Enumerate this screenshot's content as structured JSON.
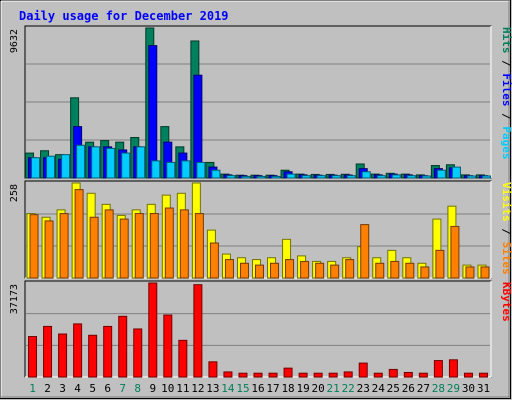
{
  "chart_data": [
    {
      "type": "bar",
      "title": "Daily usage for December 2019",
      "ylabel_parts": [
        {
          "text": "Pages",
          "color": "#00ccff"
        },
        {
          "text": "Files",
          "color": "#0000ff"
        },
        {
          "text": "Hits",
          "color": "#00805c"
        }
      ],
      "ylabel_separator": " / ",
      "max_label": "9632",
      "ylim": [
        0,
        9632
      ],
      "series": [
        {
          "name": "Hits",
          "color": "#00805c",
          "values": [
            1600,
            1750,
            1500,
            5150,
            2300,
            2400,
            2300,
            2600,
            9632,
            3300,
            2000,
            8800,
            1000,
            250,
            180,
            180,
            180,
            500,
            250,
            230,
            230,
            240,
            900,
            250,
            300,
            250,
            200,
            800,
            850,
            200,
            200
          ]
        },
        {
          "name": "Files",
          "color": "#0000ff",
          "values": [
            1300,
            1300,
            1200,
            3300,
            2000,
            2000,
            1800,
            2000,
            8500,
            2300,
            1600,
            6600,
            700,
            200,
            150,
            150,
            150,
            400,
            200,
            180,
            180,
            190,
            600,
            200,
            250,
            200,
            150,
            600,
            650,
            150,
            150
          ]
        },
        {
          "name": "Pages",
          "color": "#00ccff",
          "values": [
            1300,
            1400,
            1500,
            2100,
            2000,
            1900,
            1600,
            2000,
            1100,
            1000,
            1100,
            1000,
            500,
            150,
            100,
            100,
            100,
            250,
            150,
            150,
            150,
            150,
            400,
            150,
            200,
            150,
            130,
            500,
            700,
            130,
            130
          ]
        }
      ]
    },
    {
      "type": "bar",
      "ylabel_parts": [
        {
          "text": "Sites",
          "color": "#ff8000"
        },
        {
          "text": "Visits",
          "color": "#ffff00"
        }
      ],
      "ylabel_separator": " / ",
      "max_label": "258",
      "ylim": [
        0,
        258
      ],
      "series": [
        {
          "name": "Visits",
          "color": "#ffff00",
          "values": [
            175,
            165,
            185,
            258,
            230,
            200,
            170,
            185,
            200,
            225,
            230,
            258,
            130,
            65,
            55,
            50,
            55,
            105,
            60,
            45,
            45,
            55,
            85,
            55,
            75,
            55,
            40,
            160,
            195,
            35,
            35
          ]
        },
        {
          "name": "Sites",
          "color": "#ff8000",
          "values": [
            172,
            155,
            175,
            240,
            165,
            185,
            160,
            175,
            175,
            190,
            185,
            175,
            95,
            50,
            40,
            35,
            40,
            50,
            45,
            40,
            35,
            50,
            145,
            40,
            45,
            40,
            30,
            75,
            140,
            30,
            30
          ]
        }
      ]
    },
    {
      "type": "bar",
      "ylabel_parts": [
        {
          "text": "KBytes",
          "color": "#ff0000"
        }
      ],
      "ylabel_separator": "",
      "max_label": "37173",
      "ylim": [
        0,
        37173
      ],
      "series": [
        {
          "name": "KBytes",
          "color": "#ff0000",
          "values": [
            16000,
            20000,
            17000,
            21000,
            16500,
            20000,
            24000,
            19000,
            37173,
            24500,
            14500,
            36500,
            6000,
            2000,
            1500,
            1500,
            1500,
            3500,
            1500,
            1500,
            1500,
            2000,
            5500,
            1500,
            3000,
            1800,
            1500,
            6500,
            6800,
            1500,
            1500
          ]
        }
      ]
    }
  ],
  "days": [
    "1",
    "2",
    "3",
    "4",
    "5",
    "6",
    "7",
    "8",
    "9",
    "10",
    "11",
    "12",
    "13",
    "14",
    "15",
    "16",
    "17",
    "18",
    "19",
    "20",
    "21",
    "22",
    "23",
    "24",
    "25",
    "26",
    "27",
    "28",
    "29",
    "30",
    "31"
  ],
  "weekend_days": [
    "1",
    "7",
    "8",
    "14",
    "15",
    "21",
    "22",
    "28",
    "29"
  ],
  "colors": {
    "background": "#c0c0c0",
    "plot_background": "#c0c0c0",
    "title": "#0000ff",
    "day_label": "#000000",
    "weekend_label": "#00805c",
    "grid": "#808080",
    "axis_text": "#000000"
  }
}
